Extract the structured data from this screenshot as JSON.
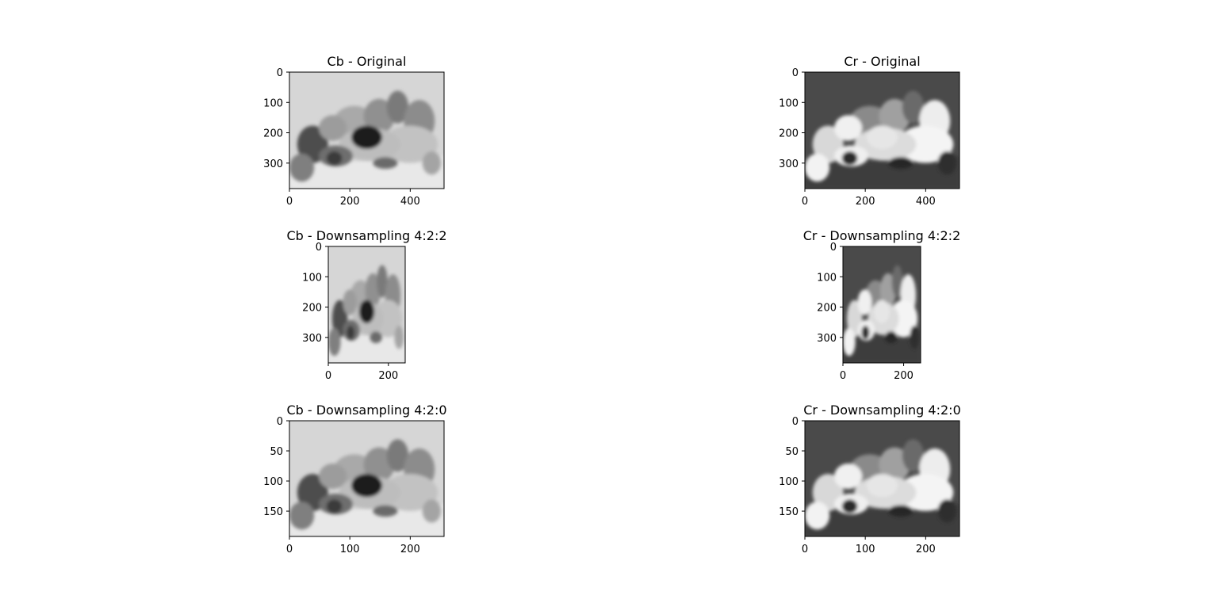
{
  "figure": {
    "background": "#ffffff"
  },
  "chart_data": [
    {
      "type": "image",
      "title": "Cb - Original",
      "colormap": "gray",
      "xlim": [
        0,
        512
      ],
      "ylim": [
        384,
        0
      ],
      "xticks": [
        0,
        200,
        400
      ],
      "yticks": [
        0,
        100,
        200,
        300
      ],
      "background_tone": "#d6d6d6",
      "tone": "light"
    },
    {
      "type": "image",
      "title": "Cr - Original",
      "colormap": "gray",
      "xlim": [
        0,
        512
      ],
      "ylim": [
        384,
        0
      ],
      "xticks": [
        0,
        200,
        400
      ],
      "yticks": [
        0,
        100,
        200,
        300
      ],
      "background_tone": "#4a4a4a",
      "tone": "dark"
    },
    {
      "type": "image",
      "title": "Cb - Downsampling 4:2:2",
      "colormap": "gray",
      "xlim": [
        0,
        256
      ],
      "ylim": [
        384,
        0
      ],
      "xticks": [
        0,
        200
      ],
      "yticks": [
        0,
        100,
        200,
        300
      ],
      "background_tone": "#d6d6d6",
      "tone": "light"
    },
    {
      "type": "image",
      "title": "Cr - Downsampling 4:2:2",
      "colormap": "gray",
      "xlim": [
        0,
        256
      ],
      "ylim": [
        384,
        0
      ],
      "xticks": [
        0,
        200
      ],
      "yticks": [
        0,
        100,
        200,
        300
      ],
      "background_tone": "#4a4a4a",
      "tone": "dark"
    },
    {
      "type": "image",
      "title": "Cb - Downsampling 4:2:0",
      "colormap": "gray",
      "xlim": [
        0,
        256
      ],
      "ylim": [
        192,
        0
      ],
      "xticks": [
        0,
        100,
        200
      ],
      "yticks": [
        0,
        50,
        100,
        150
      ],
      "background_tone": "#d6d6d6",
      "tone": "light"
    },
    {
      "type": "image",
      "title": "Cr - Downsampling 4:2:0",
      "colormap": "gray",
      "xlim": [
        0,
        256
      ],
      "ylim": [
        192,
        0
      ],
      "xticks": [
        0,
        100,
        200
      ],
      "yticks": [
        0,
        50,
        100,
        150
      ],
      "background_tone": "#4a4a4a",
      "tone": "dark"
    }
  ]
}
